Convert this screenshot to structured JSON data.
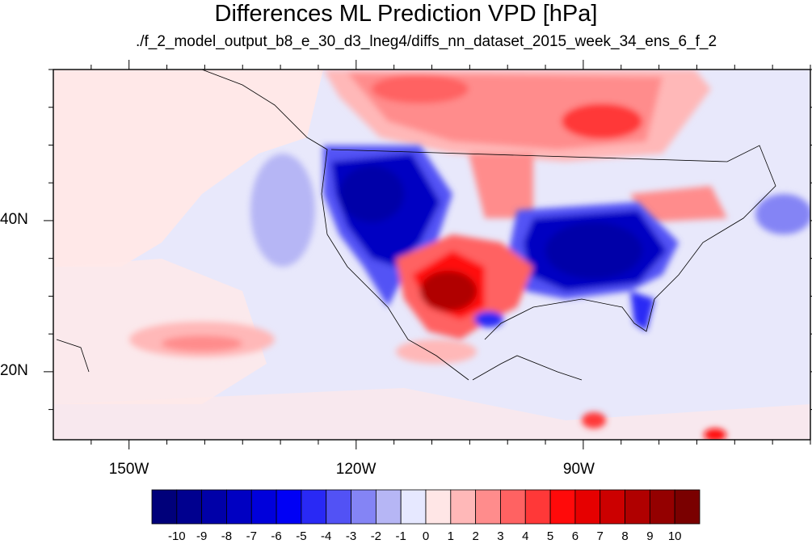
{
  "title": "Differences ML Prediction VPD [hPa]",
  "subtitle": "./f_2_model_output_b8_e_30_d3_lneg4/diffs_nn_dataset_2015_week_34_ens_6_f_2",
  "chart_data": {
    "type": "heatmap",
    "title": "Differences ML Prediction VPD [hPa]",
    "subtitle": "./f_2_model_output_b8_e_30_d3_lneg4/diffs_nn_dataset_2015_week_34_ens_6_f_2",
    "x_ticks": [
      "150W",
      "120W",
      "90W"
    ],
    "y_ticks": [
      "40N",
      "20N"
    ],
    "x_tick_values": [
      -150,
      -120,
      -90
    ],
    "y_tick_values": [
      40,
      20
    ],
    "xlim": [
      -160,
      -60
    ],
    "ylim": [
      11,
      60
    ],
    "colorbar_labels": [
      "-10",
      "-9",
      "-8",
      "-7",
      "-6",
      "-5",
      "-4",
      "-3",
      "-2",
      "-1",
      "0",
      "1",
      "2",
      "3",
      "4",
      "5",
      "6",
      "7",
      "8",
      "9",
      "10"
    ],
    "colorbar_colors": [
      "#00007a",
      "#00008f",
      "#0000a8",
      "#0000c2",
      "#0000db",
      "#0000f5",
      "#2929f5",
      "#5252f5",
      "#8484f5",
      "#b6b6f5",
      "#e6e8ff",
      "#ffe6e6",
      "#ffb8b8",
      "#ff8c8c",
      "#ff6262",
      "#ff3838",
      "#ff0a0a",
      "#e60000",
      "#cc0000",
      "#b00000",
      "#940000",
      "#7a0000"
    ],
    "background_value": "slightly negative (light blue) over ocean, slightly positive (light pink) over Pacific north",
    "features": [
      {
        "region": "western US interior",
        "sign": "negative",
        "magnitude": "-4 to -9"
      },
      {
        "region": "southeastern US",
        "sign": "negative",
        "magnitude": "-4 to -9"
      },
      {
        "region": "southwest US / northern Mexico",
        "sign": "positive",
        "magnitude": "4 to 9"
      },
      {
        "region": "central Canada",
        "sign": "positive",
        "magnitude": "2 to 6"
      },
      {
        "region": "northern Great Plains",
        "sign": "positive",
        "magnitude": "2 to 5"
      },
      {
        "region": "subtropical Pacific",
        "sign": "positive",
        "magnitude": "1 to 3"
      }
    ]
  }
}
